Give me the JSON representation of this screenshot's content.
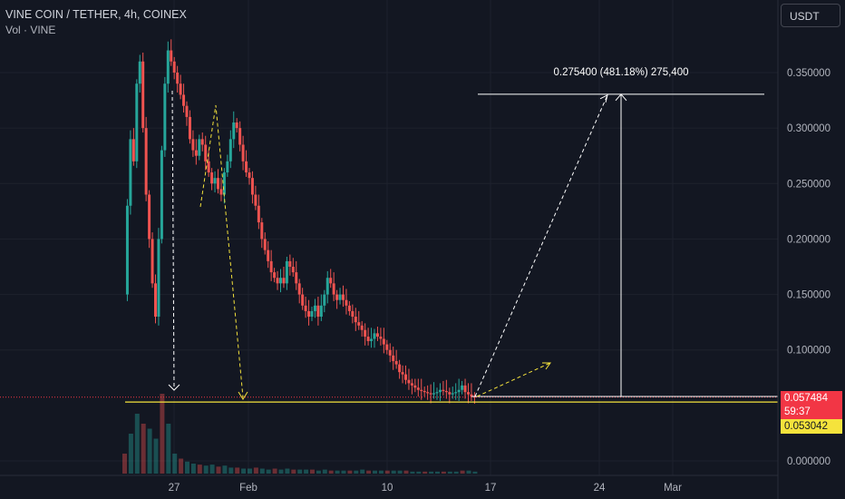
{
  "header": {
    "symbol_line": "VINE COIN / TETHER, 4h, COINEX",
    "volume_line": "Vol · VINE"
  },
  "currency_button": "USDT",
  "price_tags": {
    "last_price": "0.057484",
    "countdown": "59:37",
    "level_price": "0.053042",
    "last_color": "#f23645",
    "level_color": "#f5e33c"
  },
  "colors": {
    "up": "#26a69a",
    "down": "#ef5350",
    "projection": "#ffffff",
    "path": "#f5e33c"
  },
  "chart_data": {
    "type": "candlestick",
    "title": "VINE COIN / TETHER, 4h, COINEX",
    "ylim": [
      -0.0055,
      0.3745
    ],
    "y_ticks": [
      {
        "value": 0.35,
        "label": "0.350000"
      },
      {
        "value": 0.3,
        "label": "0.300000"
      },
      {
        "value": 0.25,
        "label": "0.250000"
      },
      {
        "value": 0.2,
        "label": "0.200000"
      },
      {
        "value": 0.15,
        "label": "0.150000"
      },
      {
        "value": 0.1,
        "label": "0.100000"
      },
      {
        "value": 0.0,
        "label": "0.000000"
      }
    ],
    "x_ticks": [
      "27",
      "Feb",
      "10",
      "17",
      "24",
      "Mar"
    ],
    "volume_label": "Vol · VINE",
    "measure_annotation": "0.275400 (481.18%) 275,400",
    "support_level": 0.053042,
    "last_price": 0.057484,
    "target_level": 0.3305,
    "price_path": [
      [
        0,
        0.15
      ],
      [
        1,
        0.23
      ],
      [
        2,
        0.29
      ],
      [
        3,
        0.27
      ],
      [
        4,
        0.34
      ],
      [
        5,
        0.36
      ],
      [
        6,
        0.3
      ],
      [
        7,
        0.24
      ],
      [
        8,
        0.2
      ],
      [
        9,
        0.16
      ],
      [
        10,
        0.13
      ],
      [
        11,
        0.2
      ],
      [
        12,
        0.28
      ],
      [
        13,
        0.34
      ],
      [
        14,
        0.37
      ],
      [
        15,
        0.36
      ],
      [
        16,
        0.35
      ],
      [
        17,
        0.34
      ],
      [
        18,
        0.33
      ],
      [
        19,
        0.32
      ],
      [
        20,
        0.31
      ],
      [
        21,
        0.29
      ],
      [
        22,
        0.28
      ],
      [
        23,
        0.275
      ],
      [
        24,
        0.29
      ],
      [
        25,
        0.285
      ],
      [
        26,
        0.27
      ],
      [
        27,
        0.26
      ],
      [
        28,
        0.25
      ],
      [
        29,
        0.255
      ],
      [
        30,
        0.245
      ],
      [
        31,
        0.24
      ],
      [
        32,
        0.26
      ],
      [
        33,
        0.27
      ],
      [
        34,
        0.29
      ],
      [
        35,
        0.305
      ],
      [
        36,
        0.3
      ],
      [
        37,
        0.285
      ],
      [
        38,
        0.27
      ],
      [
        39,
        0.26
      ],
      [
        40,
        0.255
      ],
      [
        41,
        0.24
      ],
      [
        42,
        0.23
      ],
      [
        43,
        0.215
      ],
      [
        44,
        0.2
      ],
      [
        45,
        0.19
      ],
      [
        46,
        0.18
      ],
      [
        47,
        0.17
      ],
      [
        48,
        0.165
      ],
      [
        49,
        0.16
      ],
      [
        50,
        0.165
      ],
      [
        51,
        0.16
      ],
      [
        52,
        0.18
      ],
      [
        53,
        0.175
      ],
      [
        54,
        0.17
      ],
      [
        55,
        0.16
      ],
      [
        56,
        0.15
      ],
      [
        57,
        0.14
      ],
      [
        58,
        0.135
      ],
      [
        59,
        0.13
      ],
      [
        60,
        0.135
      ],
      [
        61,
        0.14
      ],
      [
        62,
        0.13
      ],
      [
        63,
        0.14
      ],
      [
        64,
        0.15
      ],
      [
        65,
        0.165
      ],
      [
        66,
        0.16
      ],
      [
        67,
        0.15
      ],
      [
        68,
        0.145
      ],
      [
        69,
        0.15
      ],
      [
        70,
        0.145
      ],
      [
        71,
        0.14
      ],
      [
        72,
        0.135
      ],
      [
        73,
        0.13
      ],
      [
        74,
        0.125
      ],
      [
        75,
        0.122
      ],
      [
        76,
        0.118
      ],
      [
        77,
        0.112
      ],
      [
        78,
        0.108
      ],
      [
        79,
        0.11
      ],
      [
        80,
        0.115
      ],
      [
        81,
        0.112
      ],
      [
        82,
        0.11
      ],
      [
        83,
        0.105
      ],
      [
        84,
        0.1
      ],
      [
        85,
        0.095
      ],
      [
        86,
        0.09
      ],
      [
        87,
        0.087
      ],
      [
        88,
        0.08
      ],
      [
        89,
        0.078
      ],
      [
        90,
        0.073
      ],
      [
        91,
        0.07
      ],
      [
        92,
        0.068
      ],
      [
        93,
        0.066
      ],
      [
        94,
        0.064
      ],
      [
        95,
        0.063
      ],
      [
        96,
        0.062
      ],
      [
        97,
        0.061
      ],
      [
        98,
        0.06
      ],
      [
        99,
        0.061
      ],
      [
        100,
        0.062
      ],
      [
        101,
        0.064
      ],
      [
        102,
        0.063
      ],
      [
        103,
        0.062
      ],
      [
        104,
        0.06
      ],
      [
        105,
        0.061
      ],
      [
        106,
        0.062
      ],
      [
        107,
        0.064
      ],
      [
        108,
        0.068
      ],
      [
        109,
        0.062
      ],
      [
        110,
        0.06
      ],
      [
        111,
        0.058
      ],
      [
        112,
        0.0575
      ]
    ],
    "volume": [
      [
        0,
        0.02
      ],
      [
        2,
        0.04
      ],
      [
        4,
        0.06
      ],
      [
        6,
        0.05
      ],
      [
        8,
        0.045
      ],
      [
        10,
        0.035
      ],
      [
        12,
        0.08
      ],
      [
        14,
        0.05
      ],
      [
        16,
        0.02
      ],
      [
        18,
        0.015
      ],
      [
        20,
        0.012
      ],
      [
        22,
        0.01
      ],
      [
        24,
        0.009
      ],
      [
        26,
        0.008
      ],
      [
        28,
        0.009
      ],
      [
        30,
        0.007
      ],
      [
        32,
        0.008
      ],
      [
        34,
        0.006
      ],
      [
        36,
        0.006
      ],
      [
        38,
        0.005
      ],
      [
        40,
        0.005
      ],
      [
        42,
        0.006
      ],
      [
        44,
        0.005
      ],
      [
        46,
        0.004
      ],
      [
        48,
        0.005
      ],
      [
        50,
        0.004
      ],
      [
        52,
        0.005
      ],
      [
        54,
        0.004
      ],
      [
        56,
        0.004
      ],
      [
        58,
        0.004
      ],
      [
        60,
        0.004
      ],
      [
        62,
        0.003
      ],
      [
        64,
        0.004
      ],
      [
        66,
        0.003
      ],
      [
        68,
        0.003
      ],
      [
        70,
        0.003
      ],
      [
        72,
        0.003
      ],
      [
        74,
        0.003
      ],
      [
        76,
        0.004
      ],
      [
        78,
        0.003
      ],
      [
        80,
        0.003
      ],
      [
        82,
        0.003
      ],
      [
        84,
        0.003
      ],
      [
        86,
        0.003
      ],
      [
        88,
        0.003
      ],
      [
        90,
        0.003
      ],
      [
        92,
        0.002
      ],
      [
        94,
        0.002
      ],
      [
        96,
        0.002
      ],
      [
        98,
        0.002
      ],
      [
        100,
        0.002
      ],
      [
        102,
        0.002
      ],
      [
        104,
        0.002
      ],
      [
        106,
        0.002
      ],
      [
        108,
        0.003
      ],
      [
        110,
        0.003
      ],
      [
        112,
        0.002
      ]
    ]
  }
}
